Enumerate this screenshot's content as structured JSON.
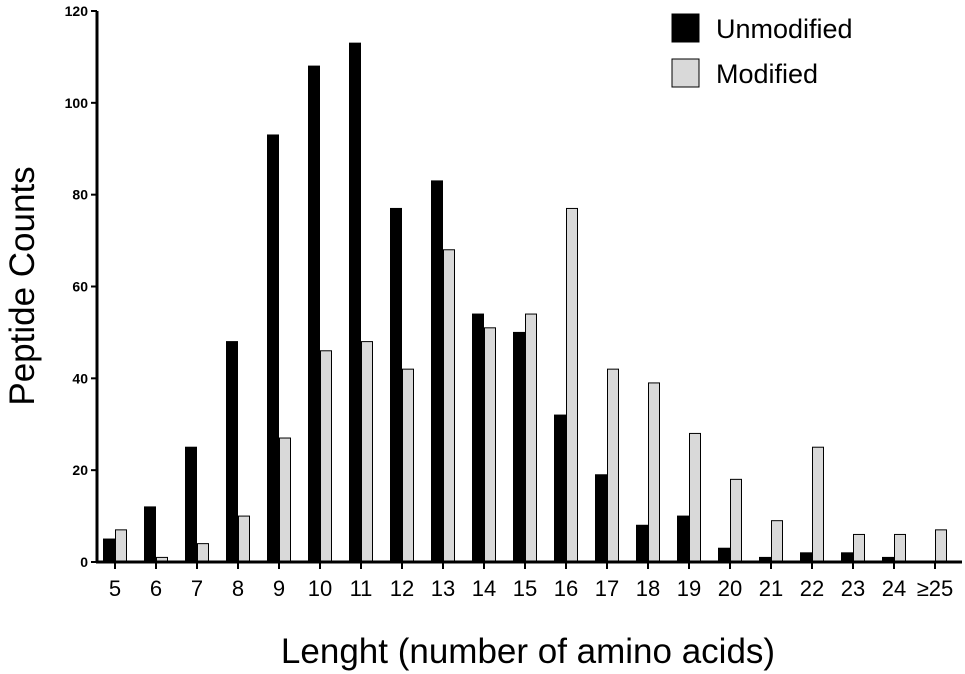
{
  "chart_data": {
    "type": "bar",
    "categories": [
      "5",
      "6",
      "7",
      "8",
      "9",
      "10",
      "11",
      "12",
      "13",
      "14",
      "15",
      "16",
      "17",
      "18",
      "19",
      "20",
      "21",
      "22",
      "23",
      "24",
      "≥25"
    ],
    "series": [
      {
        "name": "Unmodified",
        "color": "#000000",
        "values": [
          5,
          12,
          25,
          48,
          93,
          108,
          113,
          77,
          83,
          54,
          50,
          32,
          19,
          8,
          10,
          3,
          1,
          2,
          2,
          1,
          0
        ]
      },
      {
        "name": "Modified",
        "color": "#d9d9d9",
        "values": [
          7,
          1,
          4,
          10,
          27,
          46,
          48,
          42,
          68,
          51,
          54,
          77,
          42,
          39,
          28,
          18,
          9,
          25,
          6,
          6,
          7
        ]
      }
    ],
    "title": "",
    "xlabel": "Lenght (number of amino acids)",
    "ylabel": "Peptide Counts",
    "ylim": [
      0,
      120
    ],
    "yticks": [
      0,
      20,
      40,
      60,
      80,
      100,
      120
    ],
    "grid": false,
    "legend_position": "top-right"
  }
}
